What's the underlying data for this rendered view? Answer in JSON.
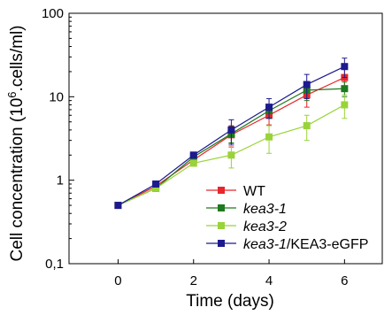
{
  "chart_data": {
    "type": "line",
    "xlabel": "Time (days)",
    "ylabel": {
      "prefix": "Cell concentration (10",
      "superscript": "6",
      "suffix": ".cells/ml)"
    },
    "x_scale": "linear",
    "y_scale": "log",
    "xlim": [
      -1.3,
      7.0
    ],
    "ylim": [
      0.1,
      100
    ],
    "x_ticks": [
      0,
      2,
      4,
      6
    ],
    "x_tick_labels": [
      "0",
      "2",
      "4",
      "6"
    ],
    "y_ticks": [
      0.1,
      1,
      10,
      100
    ],
    "y_tick_labels": [
      "0,1",
      "1",
      "10",
      "100"
    ],
    "grid": false,
    "legend_position": "bottom-right",
    "series": [
      {
        "name": "WT",
        "color": "#e8262b",
        "x": [
          0,
          1,
          2,
          3,
          4,
          5,
          6
        ],
        "y": [
          0.5,
          0.85,
          1.75,
          3.5,
          6.0,
          10.5,
          17.0
        ],
        "err": [
          0,
          0.05,
          0.15,
          1.0,
          1.4,
          3.0,
          5.0
        ]
      },
      {
        "name": "kea3-1",
        "name_parts": [
          {
            "text": "kea3-1",
            "italic": true
          }
        ],
        "color": "#1e7a1e",
        "x": [
          0,
          1,
          2,
          3,
          4,
          5,
          6
        ],
        "y": [
          0.5,
          0.8,
          1.9,
          3.6,
          6.8,
          12.0,
          12.5
        ],
        "err": [
          0,
          0.05,
          0.15,
          0.8,
          1.2,
          3.0,
          2.5
        ]
      },
      {
        "name": "kea3-2",
        "name_parts": [
          {
            "text": "kea3-2",
            "italic": true
          }
        ],
        "color": "#99d339",
        "x": [
          0,
          1,
          2,
          3,
          4,
          5,
          6
        ],
        "y": [
          0.5,
          0.8,
          1.6,
          2.0,
          3.3,
          4.5,
          8.0
        ],
        "err": [
          0,
          0.05,
          0.12,
          0.6,
          1.2,
          1.5,
          2.5
        ]
      },
      {
        "name": "kea3-1/KEA3-eGFP",
        "name_parts": [
          {
            "text": "kea3-1",
            "italic": true
          },
          {
            "text": "/KEA3-eGFP",
            "italic": false
          }
        ],
        "color": "#1c1a8e",
        "x": [
          0,
          1,
          2,
          3,
          4,
          5,
          6
        ],
        "y": [
          0.5,
          0.9,
          2.0,
          4.0,
          7.5,
          14.0,
          23.0
        ],
        "err": [
          0,
          0.06,
          0.15,
          1.3,
          2.0,
          4.5,
          6.0
        ]
      }
    ]
  }
}
